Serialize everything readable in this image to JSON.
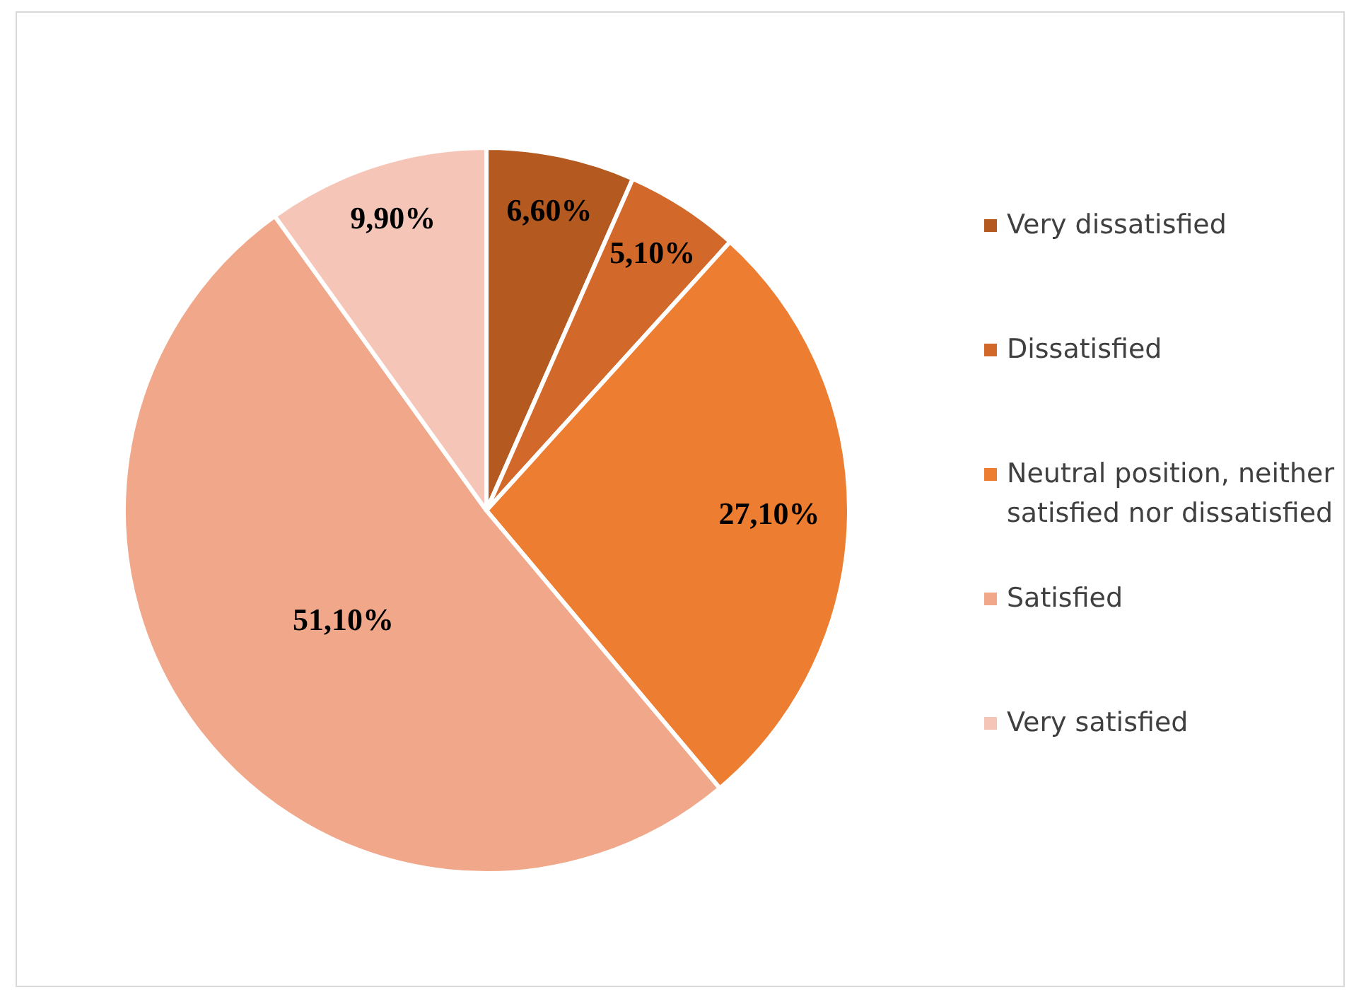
{
  "chart_data": {
    "type": "pie",
    "categories": [
      "Very dissatisfied",
      "Dissatisfied",
      "Neutral position, neither satisfied nor dissatisfied",
      "Satisfied",
      "Very satisfied"
    ],
    "values": [
      6.6,
      5.1,
      27.1,
      51.1,
      9.9
    ],
    "colors": [
      "#b45a21",
      "#d2692b",
      "#ed7d31",
      "#f1a88a",
      "#f5c6b8"
    ],
    "value_labels": [
      "6,60%",
      "5,10%",
      "27,10%",
      "51,10%",
      "9,90%"
    ],
    "legend": "right"
  }
}
